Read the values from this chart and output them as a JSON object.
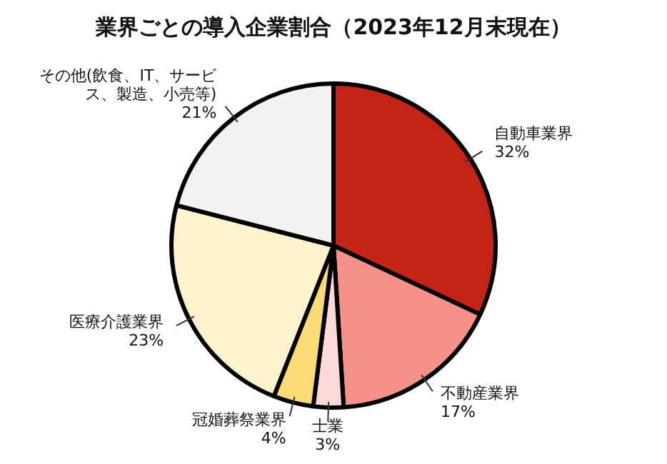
{
  "chart_data": {
    "type": "pie",
    "title": "業界ごとの導入企業割合（2023年12月末現在）",
    "categories": [
      "自動車業界",
      "不動産業界",
      "士業",
      "冠婚葬祭業界",
      "医療介護業界",
      "その他(飲食、IT、サービス、製造、小売等)"
    ],
    "values": [
      32,
      17,
      3,
      4,
      23,
      21
    ],
    "colors": [
      "#c42318",
      "#f4928a",
      "#fbd9d9",
      "#fddb74",
      "#fff3cf",
      "#f2f2f2"
    ],
    "value_labels": [
      "32%",
      "17%",
      "3%",
      "4%",
      "23%",
      "21%"
    ]
  }
}
